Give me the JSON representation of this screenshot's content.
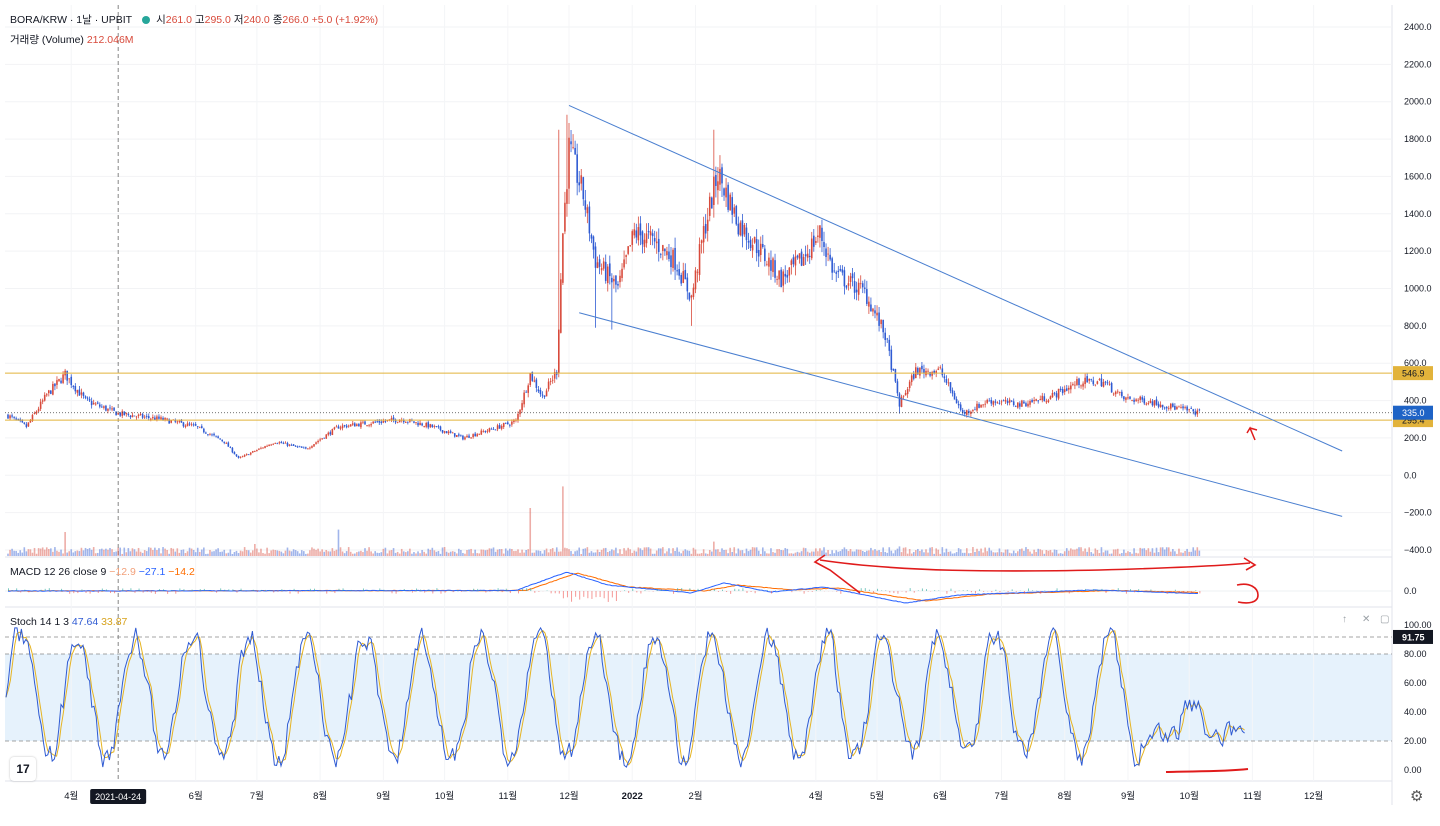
{
  "header": {
    "symbol": "BORA/KRW · 1날 · UPBIT",
    "open_label": "시",
    "open_value": "261.0",
    "high_label": "고",
    "high_value": "295.0",
    "low_label": "저",
    "low_value": "240.0",
    "close_label": "종",
    "close_value": "266.0",
    "change": "+5.0 (+1.92%)",
    "volume_label": "거래량 (Volume)",
    "volume_value": "212.046M"
  },
  "macd_legend": {
    "label": "MACD 12 26 close 9",
    "hist": "−12.9",
    "macd": "−27.1",
    "signal": "−14.2"
  },
  "stoch_legend": {
    "label": "Stoch 14 1 3",
    "k": "47.64",
    "d": "33.87"
  },
  "colors": {
    "up": "#d84a3b",
    "down": "#2f5bd3",
    "trendline": "#4a7fd0",
    "level": "#e2b33b",
    "annotation": "#e01b1b",
    "macd": "#2962ff",
    "signal": "#ff6d00",
    "stoch_k": "#2f5bd3",
    "stoch_d": "#e6b422",
    "stoch_band": "#e6f2fc",
    "last_price": "#1e63c6"
  },
  "chart_data": [
    {
      "type": "candlestick",
      "pane": "price",
      "symbol": "BORA/KRW",
      "interval": "1D",
      "exchange": "UPBIT",
      "ylim": [
        -400,
        2400
      ],
      "y_ticks": [
        "2400.0",
        "2200.0",
        "2000.0",
        "1800.0",
        "1600.0",
        "1400.0",
        "1200.0",
        "1000.0",
        "800.0",
        "600.0",
        "400.0",
        "200.0",
        "0.0",
        "−200.0",
        "−400.0"
      ],
      "x_ticks": [
        "4월",
        "5월",
        "6월",
        "7월",
        "8월",
        "9월",
        "10월",
        "11월",
        "12월",
        "2022",
        "2월",
        "3월",
        "4월",
        "5월",
        "6월",
        "7월",
        "8월",
        "9월",
        "10월",
        "11월",
        "12월"
      ],
      "x_ticks_visible": [
        "4월",
        "6월",
        "7월",
        "8월",
        "9월",
        "10월",
        "11월",
        "12월",
        "2022",
        "2월",
        "4월",
        "5월",
        "6월",
        "7월",
        "8월",
        "9월",
        "10월",
        "11월",
        "12월"
      ],
      "crosshair_date": "2021-04-24",
      "price_path": [
        [
          "2021-03-01",
          320
        ],
        [
          "2021-03-10",
          260
        ],
        [
          "2021-03-20",
          430
        ],
        [
          "2021-03-29",
          540
        ],
        [
          "2021-04-08",
          400
        ],
        [
          "2021-04-24",
          330
        ],
        [
          "2021-05-15",
          300
        ],
        [
          "2021-06-01",
          260
        ],
        [
          "2021-06-15",
          180
        ],
        [
          "2021-06-22",
          90
        ],
        [
          "2021-07-10",
          180
        ],
        [
          "2021-07-25",
          140
        ],
        [
          "2021-08-10",
          260
        ],
        [
          "2021-08-25",
          280
        ],
        [
          "2021-09-10",
          300
        ],
        [
          "2021-09-25",
          260
        ],
        [
          "2021-10-10",
          200
        ],
        [
          "2021-10-25",
          250
        ],
        [
          "2021-11-05",
          290
        ],
        [
          "2021-11-12",
          540
        ],
        [
          "2021-11-18",
          420
        ],
        [
          "2021-11-25",
          560
        ],
        [
          "2021-11-28",
          1300
        ],
        [
          "2021-12-01",
          1750
        ],
        [
          "2021-12-08",
          1500
        ],
        [
          "2021-12-14",
          1150
        ],
        [
          "2021-12-25",
          1000
        ],
        [
          "2022-01-02",
          1300
        ],
        [
          "2022-01-12",
          1250
        ],
        [
          "2022-01-22",
          1150
        ],
        [
          "2022-01-30",
          950
        ],
        [
          "2022-02-05",
          1300
        ],
        [
          "2022-02-12",
          1620
        ],
        [
          "2022-02-22",
          1350
        ],
        [
          "2022-03-05",
          1200
        ],
        [
          "2022-03-15",
          1050
        ],
        [
          "2022-03-25",
          1150
        ],
        [
          "2022-04-03",
          1300
        ],
        [
          "2022-04-10",
          1080
        ],
        [
          "2022-04-25",
          980
        ],
        [
          "2022-05-05",
          750
        ],
        [
          "2022-05-12",
          380
        ],
        [
          "2022-05-20",
          560
        ],
        [
          "2022-06-01",
          560
        ],
        [
          "2022-06-12",
          330
        ],
        [
          "2022-06-25",
          400
        ],
        [
          "2022-07-10",
          380
        ],
        [
          "2022-07-25",
          420
        ],
        [
          "2022-08-08",
          500
        ],
        [
          "2022-08-20",
          500
        ],
        [
          "2022-08-30",
          410
        ],
        [
          "2022-09-10",
          400
        ],
        [
          "2022-09-25",
          360
        ],
        [
          "2022-10-06",
          335
        ]
      ],
      "wick_highs": [
        [
          "2021-11-26",
          1850
        ],
        [
          "2021-11-30",
          1930
        ],
        [
          "2022-02-10",
          1850
        ],
        [
          "2022-04-03",
          1330
        ]
      ],
      "wick_lows": [
        [
          "2021-12-14",
          790
        ],
        [
          "2021-12-22",
          780
        ],
        [
          "2022-01-30",
          800
        ],
        [
          "2022-05-12",
          330
        ]
      ],
      "horizontal_levels": [
        546.9,
        295.4
      ],
      "last_price": 335.0,
      "level_labels": [
        "546.9",
        "295.4"
      ],
      "last_price_label": "335.0",
      "trendlines": [
        {
          "from": [
            "2021-12-01",
            1980
          ],
          "to": [
            "2022-12-15",
            130
          ]
        },
        {
          "from": [
            "2021-12-06",
            870
          ],
          "to": [
            "2022-12-15",
            -220
          ]
        }
      ]
    },
    {
      "type": "bar",
      "pane": "volume",
      "name": "거래량 (Volume)",
      "spikes": [
        [
          "2021-03-29",
          0.5
        ],
        [
          "2021-06-30",
          0.25
        ],
        [
          "2021-08-10",
          0.55
        ],
        [
          "2021-11-12",
          1.0
        ],
        [
          "2021-11-28",
          1.45
        ],
        [
          "2022-02-10",
          0.3
        ],
        [
          "2022-05-12",
          0.2
        ]
      ]
    },
    {
      "type": "line",
      "pane": "macd",
      "name": "MACD 12 26 close 9",
      "y_ticks": [
        "0.0"
      ],
      "macd_path": [
        [
          "2021-03-01",
          0
        ],
        [
          "2021-11-05",
          5
        ],
        [
          "2021-11-30",
          190
        ],
        [
          "2021-12-20",
          60
        ],
        [
          "2022-01-30",
          -20
        ],
        [
          "2022-02-15",
          80
        ],
        [
          "2022-03-10",
          -10
        ],
        [
          "2022-04-05",
          40
        ],
        [
          "2022-05-15",
          -120
        ],
        [
          "2022-06-10",
          -40
        ],
        [
          "2022-08-15",
          10
        ],
        [
          "2022-10-06",
          -27.1
        ]
      ],
      "signal_path": [
        [
          "2021-03-01",
          0
        ],
        [
          "2021-11-10",
          5
        ],
        [
          "2021-12-05",
          180
        ],
        [
          "2021-12-30",
          40
        ],
        [
          "2022-02-05",
          0
        ],
        [
          "2022-02-22",
          60
        ],
        [
          "2022-03-20",
          10
        ],
        [
          "2022-04-12",
          30
        ],
        [
          "2022-05-25",
          -100
        ],
        [
          "2022-06-25",
          -30
        ],
        [
          "2022-08-25",
          5
        ],
        [
          "2022-10-06",
          -14.2
        ]
      ]
    },
    {
      "type": "line",
      "pane": "stoch",
      "name": "Stoch 14 1 3",
      "ylim": [
        0,
        100
      ],
      "y_ticks": [
        "100.00",
        "80.00",
        "60.00",
        "40.00",
        "20.00",
        "0.00"
      ],
      "levels": [
        80,
        20
      ],
      "last_value_label": "91.75"
    }
  ]
}
